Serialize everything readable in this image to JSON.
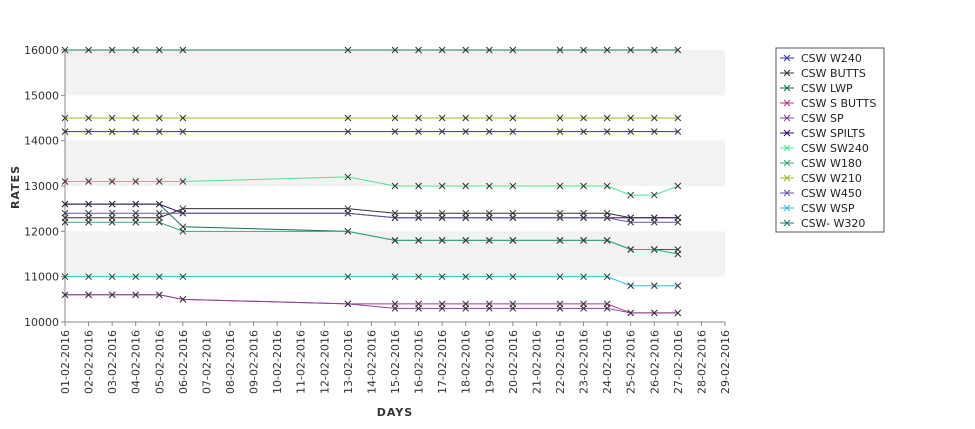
{
  "chart_data": {
    "type": "line",
    "xlabel": "DAYS",
    "ylabel": "RATES",
    "ylim": [
      10000,
      16000
    ],
    "yticks": [
      "10000",
      "11000",
      "12000",
      "13000",
      "14000",
      "15000",
      "16000"
    ],
    "x_tick_labels": [
      "01-02-2016",
      "02-02-2016",
      "03-02-2016",
      "04-02-2016",
      "05-02-2016",
      "06-02-2016",
      "07-02-2016",
      "08-02-2016",
      "09-02-2016",
      "10-02-2016",
      "11-02-2016",
      "12-02-2016",
      "13-02-2016",
      "14-02-2016",
      "15-02-2016",
      "16-02-2016",
      "17-02-2016",
      "18-02-2016",
      "19-02-2016",
      "20-02-2016",
      "21-02-2016",
      "22-02-2016",
      "23-02-2016",
      "24-02-2016",
      "25-02-2016",
      "26-02-2016",
      "27-02-2016",
      "28-02-2016",
      "29-02-2016"
    ],
    "x_dates": [
      "01-02-2016",
      "02-02-2016",
      "03-02-2016",
      "04-02-2016",
      "05-02-2016",
      "06-02-2016",
      "13-02-2016",
      "15-02-2016",
      "16-02-2016",
      "17-02-2016",
      "18-02-2016",
      "19-02-2016",
      "20-02-2016",
      "22-02-2016",
      "23-02-2016",
      "24-02-2016",
      "25-02-2016",
      "26-02-2016",
      "27-02-2016"
    ],
    "grid": "alternating horizontal bands",
    "legend_position": "right",
    "series": [
      {
        "name": "CSW  W240",
        "color": "#3333aa",
        "values": [
          14200,
          14200,
          14200,
          14200,
          14200,
          14200,
          14200,
          14200,
          14200,
          14200,
          14200,
          14200,
          14200,
          14200,
          14200,
          14200,
          14200,
          14200,
          14200
        ]
      },
      {
        "name": "CSW BUTTS",
        "color": "#333333",
        "values": [
          12300,
          12300,
          12300,
          12300,
          12300,
          12500,
          12500,
          12400,
          12400,
          12400,
          12400,
          12400,
          12400,
          12400,
          12400,
          12400,
          12300,
          12300,
          12300
        ]
      },
      {
        "name": "CSW LWP",
        "color": "#226655",
        "values": [
          12600,
          12600,
          12600,
          12600,
          12600,
          12100,
          12000,
          11800,
          11800,
          11800,
          11800,
          11800,
          11800,
          11800,
          11800,
          11800,
          11600,
          11600,
          11600
        ]
      },
      {
        "name": "CSW S BUTTS",
        "color": "#bb3388",
        "values": [
          10600,
          10600,
          10600,
          10600,
          10600,
          10500,
          10400,
          10400,
          10400,
          10400,
          10400,
          10400,
          10400,
          10400,
          10400,
          10400,
          10200,
          10200,
          10200
        ]
      },
      {
        "name": "CSW SP",
        "color": "#884499",
        "values": [
          10600,
          10600,
          10600,
          10600,
          10600,
          10500,
          10400,
          10300,
          10300,
          10300,
          10300,
          10300,
          10300,
          10300,
          10300,
          10300,
          10200,
          10200,
          10200
        ]
      },
      {
        "name": "CSW SPILTS",
        "color": "#331166",
        "values": [
          12600,
          12600,
          12600,
          12600,
          12600,
          12400,
          12400,
          12300,
          12300,
          12300,
          12300,
          12300,
          12300,
          12300,
          12300,
          12300,
          12300,
          12300,
          12300
        ]
      },
      {
        "name": "CSW SW240",
        "color": "#55dd99",
        "values": [
          13100,
          13100,
          13100,
          13100,
          13100,
          13100,
          13200,
          13000,
          13000,
          13000,
          13000,
          13000,
          13000,
          13000,
          13000,
          13000,
          12800,
          12800,
          13000
        ]
      },
      {
        "name": "CSW W180",
        "color": "#33aa77",
        "values": [
          12200,
          12200,
          12200,
          12200,
          12200,
          12000,
          12000,
          11800,
          11800,
          11800,
          11800,
          11800,
          11800,
          11800,
          11800,
          11800,
          11600,
          11600,
          11500
        ]
      },
      {
        "name": "CSW W210",
        "color": "#99bb22",
        "values": [
          14500,
          14500,
          14500,
          14500,
          14500,
          14500,
          14500,
          14500,
          14500,
          14500,
          14500,
          14500,
          14500,
          14500,
          14500,
          14500,
          14500,
          14500,
          14500
        ]
      },
      {
        "name": "CSW W450",
        "color": "#6655aa",
        "values": [
          12400,
          12400,
          12400,
          12400,
          12400,
          12400,
          12400,
          12300,
          12300,
          12300,
          12300,
          12300,
          12300,
          12300,
          12300,
          12300,
          12200,
          12200,
          12200
        ]
      },
      {
        "name": "CSW WSP",
        "color": "#33bbcc",
        "values": [
          11000,
          11000,
          11000,
          11000,
          11000,
          11000,
          11000,
          11000,
          11000,
          11000,
          11000,
          11000,
          11000,
          11000,
          11000,
          11000,
          10800,
          10800,
          10800
        ]
      },
      {
        "name": "CSW- W320",
        "color": "#227766",
        "values": [
          16000,
          16000,
          16000,
          16000,
          16000,
          16000,
          16000,
          16000,
          16000,
          16000,
          16000,
          16000,
          16000,
          16000,
          16000,
          16000,
          16000,
          16000,
          16000
        ]
      }
    ]
  }
}
